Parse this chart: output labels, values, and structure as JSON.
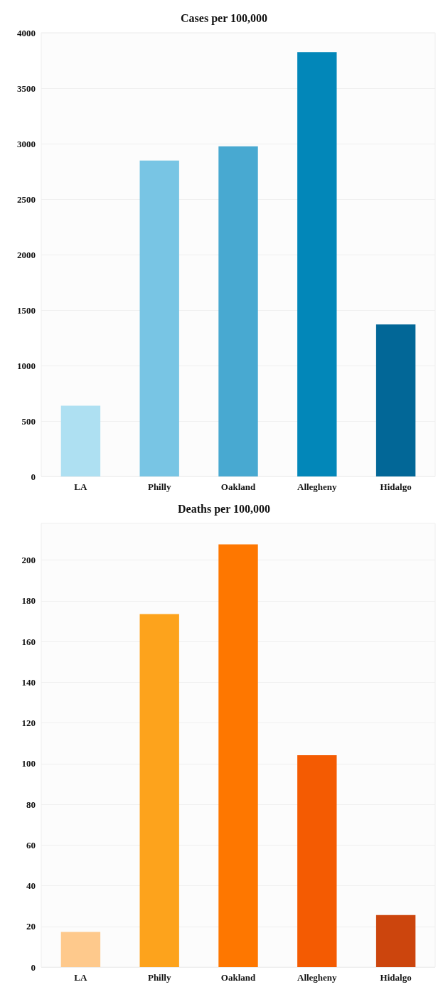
{
  "chart_data": [
    {
      "type": "bar",
      "title": "Cases per 100,000",
      "categories": [
        "LA",
        "Philly",
        "Oakland",
        "Allegheny",
        "Hidalgo"
      ],
      "values": [
        638,
        2847,
        2976,
        3825,
        1370
      ],
      "colors": [
        "#aee0f2",
        "#78c5e4",
        "#48a9d1",
        "#0287b9",
        "#026797"
      ],
      "ylim": [
        0,
        4000
      ],
      "yticks": [
        0,
        500,
        1000,
        1500,
        2000,
        2500,
        3000,
        3500,
        4000
      ],
      "grid": "y"
    },
    {
      "type": "bar",
      "title": "Deaths per 100,000",
      "categories": [
        "LA",
        "Philly",
        "Oakland",
        "Allegheny",
        "Hidalgo"
      ],
      "values": [
        17.3,
        173.5,
        207.7,
        104.1,
        25.6
      ],
      "colors": [
        "#fec98c",
        "#fda31c",
        "#fe7700",
        "#f45b02",
        "#cc450d"
      ],
      "ylim": [
        0,
        218
      ],
      "yticks": [
        0,
        20,
        40,
        60,
        80,
        100,
        120,
        140,
        160,
        180,
        200
      ],
      "grid": "y"
    }
  ]
}
